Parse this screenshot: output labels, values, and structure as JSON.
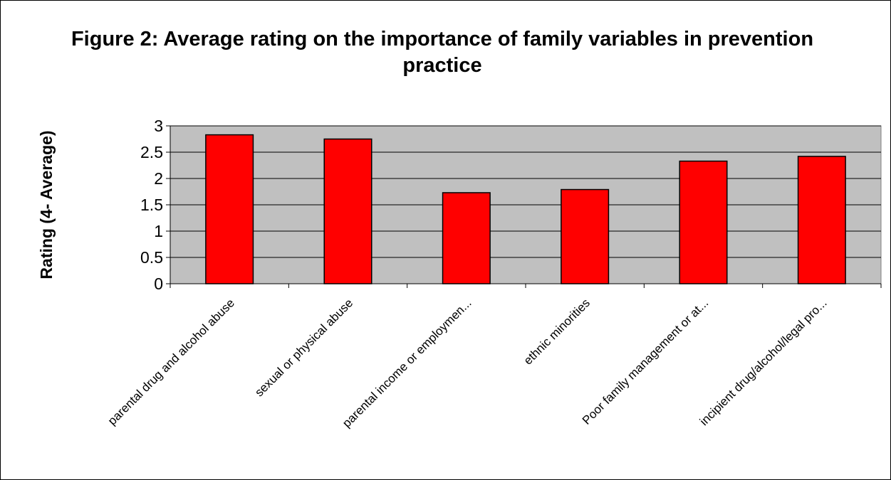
{
  "chart_data": {
    "type": "bar",
    "title": "Figure 2: Average rating on the importance of family variables in prevention practice",
    "xlabel": "",
    "ylabel": "Rating (4- Average)",
    "categories": [
      "parental drug and alcohol abuse",
      "sexual or physical abuse",
      "parental income or employmen...",
      "ethnic minorities",
      "Poor family management or at...",
      "incipient drug/alcohol/legal pro..."
    ],
    "values": [
      2.83,
      2.75,
      1.73,
      1.79,
      2.33,
      2.42
    ],
    "ylim": [
      0,
      3
    ],
    "yticks": [
      "0",
      "0.5",
      "1",
      "1.5",
      "2",
      "2.5",
      "3"
    ],
    "grid": true,
    "colors": {
      "bar": "#ff0000",
      "plot_background": "#c0c0c0",
      "gridline": "#000000"
    }
  }
}
